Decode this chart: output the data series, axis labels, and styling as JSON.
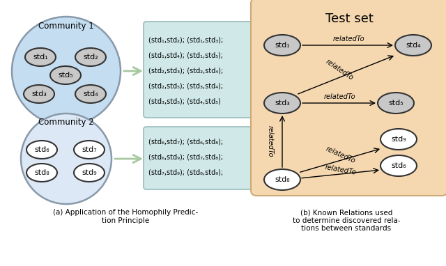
{
  "community1_label": "Community 1",
  "community2_label": "Community 2",
  "pairs1_line1": "(std₁,std₂); (std₁,std₃);",
  "pairs1_line2": "(std₁,std₄); (std₁,std₅);",
  "pairs1_line3": "(std₂,std₃); (std₂,std₄);",
  "pairs1_line4": "(std₂,std₅); (std₃,std₄);",
  "pairs1_line5": "(std₃,std₅); (std₄,std₅)",
  "pairs2_line1": "(std₆,std₇); (std₆,std₈);",
  "pairs2_line2": "(std₆,std₉); (std₇,std₈);",
  "pairs2_line3": "(std₇,std₉); (std₈,std₉);",
  "testset_label": "Test set",
  "comm1_fill": "#c5ddf0",
  "comm1_edge": "#8899aa",
  "comm2_fill": "#dce8f5",
  "comm2_edge": "#8899aa",
  "node_dark_fill": "#c8c8c8",
  "node_dark_edge": "#333333",
  "node_light_fill": "#ffffff",
  "node_light_edge": "#333333",
  "box_fill": "#d0e8e8",
  "box_edge": "#99bbbb",
  "testset_fill": "#f5d8b0",
  "testset_edge": "#ccaa77",
  "arrow_green": "#a8c8a0",
  "rel_label": "relatedTo",
  "caption_a": "(a) Application of the Homophily Predic-\ntion Principle",
  "caption_b": "(b) Known Relations used\nto determine discovered rela-\ntions between standards"
}
